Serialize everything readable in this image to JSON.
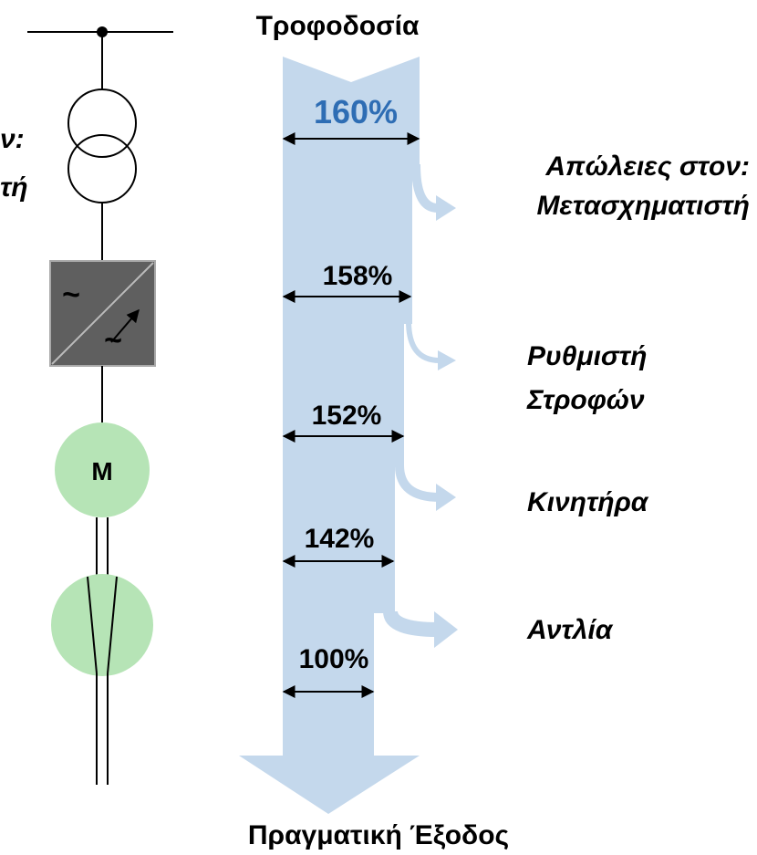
{
  "title": "Τροφοδοσία",
  "output": "Πραγματική Έξοδος",
  "loss_header": "Απώλειες στον:",
  "left_fragments": [
    "ν:",
    "τή"
  ],
  "levels": [
    "160%",
    "158%",
    "152%",
    "142%",
    "100%"
  ],
  "losses": [
    [
      "Μετασχηματιστή"
    ],
    [
      "Ρυθμιστή",
      "Στροφών"
    ],
    [
      "Κινητήρα"
    ],
    [
      "Αντλία"
    ]
  ],
  "converter": {
    "input": "~",
    "output": "~"
  },
  "motor": "M"
}
